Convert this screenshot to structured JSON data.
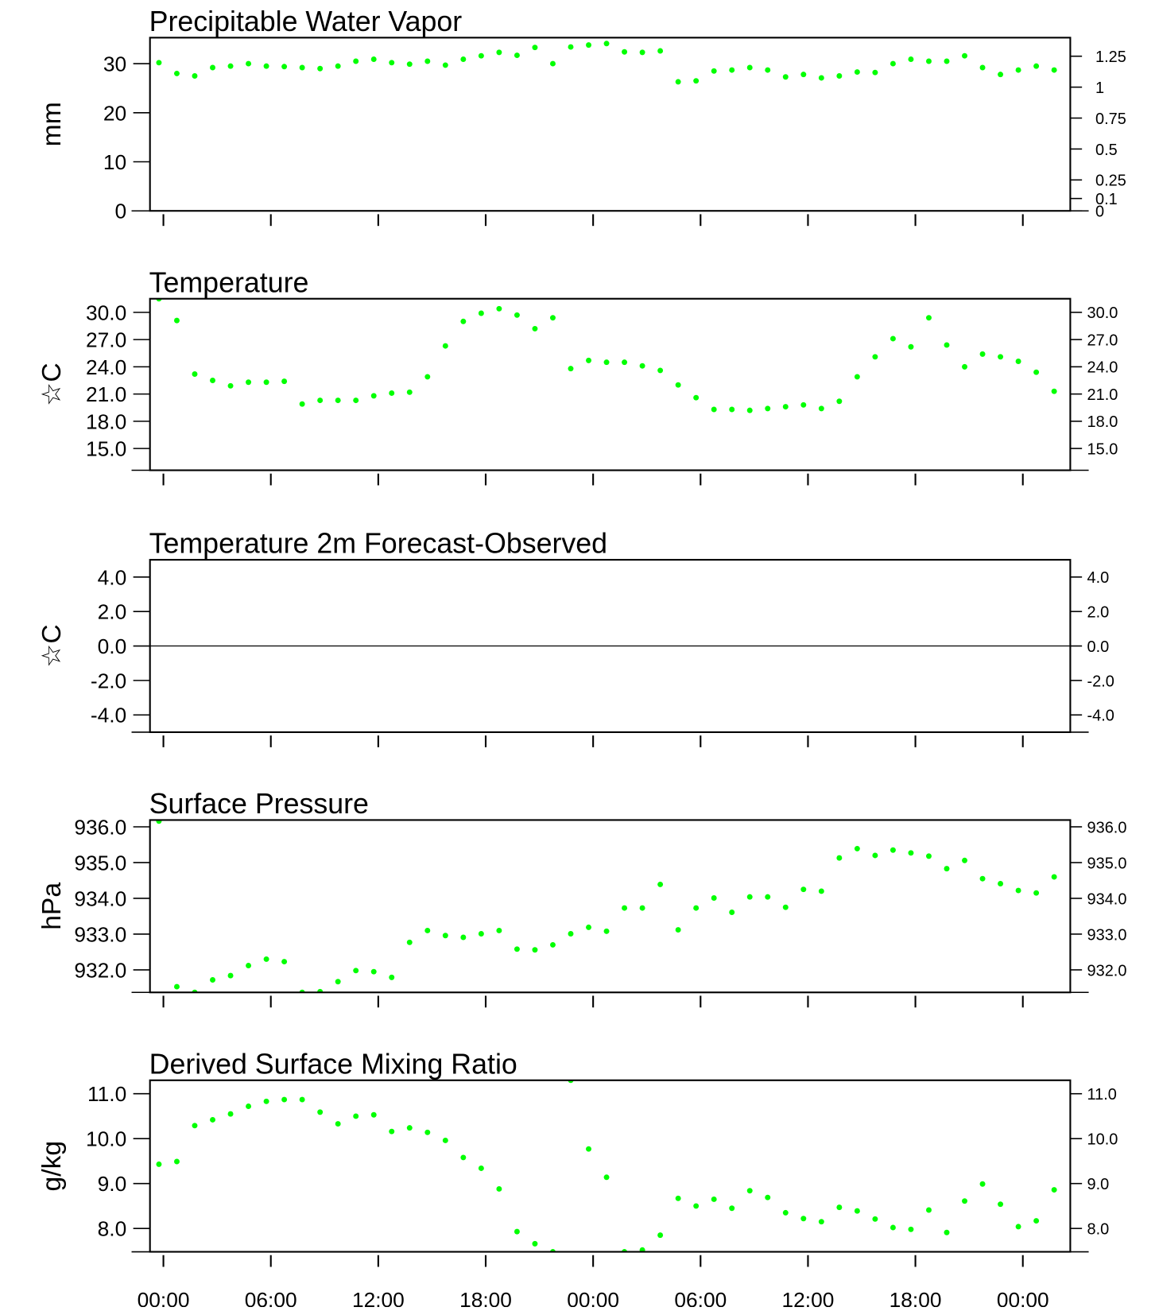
{
  "chart_data": [
    {
      "type": "scatter",
      "title": "Precipitable Water Vapor",
      "ylabel": "mm",
      "color": "#00ff00",
      "x": [
        -0.25,
        0.75,
        1.75,
        2.75,
        3.75,
        4.75,
        5.75,
        6.75,
        7.75,
        8.75,
        9.75,
        10.75,
        11.75,
        12.75,
        13.75,
        14.75,
        15.75,
        16.75,
        17.75,
        18.75,
        19.75,
        20.75,
        21.75,
        22.75,
        23.75,
        24.75,
        25.75,
        26.75,
        27.75,
        28.75,
        29.75,
        30.75,
        31.75,
        32.75,
        33.75,
        34.75,
        35.75,
        36.75,
        37.75,
        38.75,
        39.75,
        40.75,
        41.75,
        42.75,
        43.75,
        44.75,
        45.75,
        46.75,
        47.75,
        48.75,
        49.75
      ],
      "values": [
        30.2,
        28.0,
        27.5,
        29.2,
        29.5,
        30.0,
        29.5,
        29.4,
        29.2,
        29.0,
        29.5,
        30.5,
        30.9,
        30.2,
        29.9,
        30.5,
        29.7,
        30.9,
        31.6,
        32.3,
        31.7,
        33.3,
        30.0,
        33.4,
        33.8,
        34.1,
        32.4,
        32.3,
        32.6,
        26.3,
        26.5,
        28.5,
        28.7,
        29.2,
        28.7,
        27.3,
        27.8,
        27.1,
        27.5,
        28.3,
        28.2,
        30.0,
        30.9,
        30.5,
        30.5,
        31.6,
        29.2,
        27.8,
        28.7,
        29.5,
        28.7
      ],
      "xlim": [
        -0.75,
        50.65
      ],
      "xticks": [
        0,
        6,
        12,
        18,
        24,
        30,
        36,
        42,
        48
      ],
      "ylim": [
        0,
        35.3
      ],
      "yticks": [
        0,
        10,
        20,
        30
      ],
      "y2lim": [
        0,
        1.4
      ],
      "y2ticks": [
        0,
        0.1,
        0.25,
        0.5,
        0.75,
        1,
        1.25
      ]
    },
    {
      "type": "scatter",
      "title": "Temperature",
      "ylabel": "☆C",
      "color": "#00ff00",
      "x": [
        -0.25,
        0.75,
        1.75,
        2.75,
        3.75,
        4.75,
        5.75,
        6.75,
        7.75,
        8.75,
        9.75,
        10.75,
        11.75,
        12.75,
        13.75,
        14.75,
        15.75,
        16.75,
        17.75,
        18.75,
        19.75,
        20.75,
        21.75,
        22.75,
        23.75,
        24.75,
        25.75,
        26.75,
        27.75,
        28.75,
        29.75,
        30.75,
        31.75,
        32.75,
        33.75,
        34.75,
        35.75,
        36.75,
        37.75,
        38.75,
        39.75,
        40.75,
        41.75,
        42.75,
        43.75,
        44.75,
        45.75,
        46.75,
        47.75,
        48.75,
        49.75
      ],
      "values": [
        31.5,
        29.1,
        23.2,
        22.5,
        21.9,
        22.3,
        22.3,
        22.4,
        19.9,
        20.3,
        20.3,
        20.3,
        20.8,
        21.1,
        21.2,
        22.9,
        26.3,
        29.0,
        29.9,
        30.4,
        29.7,
        28.2,
        29.4,
        23.8,
        24.7,
        24.5,
        24.5,
        24.1,
        23.6,
        22.0,
        20.6,
        19.3,
        19.3,
        19.2,
        19.4,
        19.6,
        19.8,
        19.4,
        20.2,
        22.9,
        25.1,
        27.1,
        26.2,
        29.4,
        26.4,
        24.0,
        25.4,
        25.1,
        24.6,
        23.4,
        21.3
      ],
      "xlim": [
        -0.75,
        50.65
      ],
      "xticks": [
        0,
        6,
        12,
        18,
        24,
        30,
        36,
        42,
        48
      ],
      "ylim": [
        12.6,
        31.5
      ],
      "yticks": [
        {
          "value": 15,
          "label": "15.0"
        },
        {
          "value": 18,
          "label": "18.0"
        },
        {
          "value": 21,
          "label": "21.0"
        },
        {
          "value": 24,
          "label": "24.0"
        },
        {
          "value": 27,
          "label": "27.0"
        },
        {
          "value": 30,
          "label": "30.0"
        }
      ]
    },
    {
      "type": "scatter",
      "title": "Temperature 2m Forecast-Observed",
      "ylabel": "☆C",
      "xlim": [
        -0.75,
        50.65
      ],
      "xticks": [
        0,
        6,
        12,
        18,
        24,
        30,
        36,
        42,
        48
      ],
      "ylim": [
        -5,
        5
      ],
      "hline": 0,
      "yticks": [
        {
          "value": -4,
          "label": "-4.0"
        },
        {
          "value": -2,
          "label": "-2.0"
        },
        {
          "value": 0,
          "label": "0.0"
        },
        {
          "value": 2,
          "label": "2.0"
        },
        {
          "value": 4,
          "label": "4.0"
        }
      ]
    },
    {
      "type": "scatter",
      "title": "Surface Pressure",
      "ylabel": "hPa",
      "color": "#00ff00",
      "x": [
        -0.25,
        0.75,
        1.75,
        2.75,
        3.75,
        4.75,
        5.75,
        6.75,
        7.75,
        8.75,
        9.75,
        10.75,
        11.75,
        12.75,
        13.75,
        14.75,
        15.75,
        16.75,
        17.75,
        18.75,
        19.75,
        20.75,
        21.75,
        22.75,
        23.75,
        24.75,
        25.75,
        26.75,
        27.75,
        28.75,
        29.75,
        30.75,
        31.75,
        32.75,
        33.75,
        34.75,
        35.75,
        36.75,
        37.75,
        38.75,
        39.75,
        40.75,
        41.75,
        42.75,
        43.75,
        44.75,
        45.75,
        46.75,
        47.75,
        48.75,
        49.75
      ],
      "values": [
        936.16,
        931.53,
        931.37,
        931.72,
        931.84,
        932.12,
        932.3,
        932.23,
        931.37,
        931.39,
        931.67,
        931.98,
        931.95,
        931.79,
        932.77,
        933.1,
        932.96,
        932.91,
        933.01,
        933.1,
        932.58,
        932.56,
        932.7,
        933.01,
        933.19,
        933.08,
        933.73,
        933.73,
        934.39,
        933.12,
        933.73,
        934.01,
        933.61,
        934.04,
        934.04,
        933.75,
        934.25,
        934.2,
        935.13,
        935.39,
        935.2,
        935.35,
        935.27,
        935.18,
        934.83,
        935.06,
        934.55,
        934.41,
        934.22,
        934.15,
        934.6
      ],
      "xlim": [
        -0.75,
        50.65
      ],
      "xticks": [
        0,
        6,
        12,
        18,
        24,
        30,
        36,
        42,
        48
      ],
      "ylim": [
        931.37,
        936.19
      ],
      "yticks": [
        {
          "value": 932,
          "label": "932.0"
        },
        {
          "value": 933,
          "label": "933.0"
        },
        {
          "value": 934,
          "label": "934.0"
        },
        {
          "value": 935,
          "label": "935.0"
        },
        {
          "value": 936,
          "label": "936.0"
        }
      ]
    },
    {
      "type": "scatter",
      "title": "Derived Surface Mixing Ratio",
      "ylabel": "g/kg",
      "color": "#00ff00",
      "x": [
        -0.25,
        0.75,
        1.75,
        2.75,
        3.75,
        4.75,
        5.75,
        6.75,
        7.75,
        8.75,
        9.75,
        10.75,
        11.75,
        12.75,
        13.75,
        14.75,
        15.75,
        16.75,
        17.75,
        18.75,
        19.75,
        20.75,
        21.75,
        22.75,
        23.75,
        24.75,
        25.75,
        26.75,
        27.75,
        28.75,
        29.75,
        30.75,
        31.75,
        32.75,
        33.75,
        34.75,
        35.75,
        36.75,
        37.75,
        38.75,
        39.75,
        40.75,
        41.75,
        42.75,
        43.75,
        44.75,
        45.75,
        46.75,
        47.75,
        48.75,
        49.75
      ],
      "values": [
        9.43,
        9.49,
        10.29,
        10.42,
        10.55,
        10.72,
        10.83,
        10.87,
        10.87,
        10.59,
        10.33,
        10.5,
        10.53,
        10.16,
        10.24,
        10.14,
        9.96,
        9.58,
        9.34,
        8.88,
        7.93,
        7.66,
        7.48,
        11.3,
        9.77,
        9.14,
        7.48,
        7.52,
        7.85,
        8.67,
        8.5,
        8.65,
        8.45,
        8.84,
        8.69,
        8.35,
        8.22,
        8.15,
        8.47,
        8.39,
        8.21,
        8.02,
        7.98,
        8.41,
        7.91,
        8.61,
        8.99,
        8.54,
        8.04,
        8.17,
        8.86
      ],
      "xlim": [
        -0.75,
        50.65
      ],
      "xticks": [
        {
          "value": 0,
          "label": "00:00"
        },
        {
          "value": 6,
          "label": "06:00"
        },
        {
          "value": 12,
          "label": "12:00"
        },
        {
          "value": 18,
          "label": "18:00"
        },
        {
          "value": 24,
          "label": "00:00"
        },
        {
          "value": 30,
          "label": "06:00"
        },
        {
          "value": 36,
          "label": "12:00"
        },
        {
          "value": 42,
          "label": "18:00"
        },
        {
          "value": 48,
          "label": "00:00"
        }
      ],
      "ylim": [
        7.48,
        11.3
      ],
      "yticks": [
        {
          "value": 8,
          "label": "8.0"
        },
        {
          "value": 9,
          "label": "9.0"
        },
        {
          "value": 10,
          "label": "10.0"
        },
        {
          "value": 11,
          "label": "11.0"
        }
      ]
    }
  ]
}
